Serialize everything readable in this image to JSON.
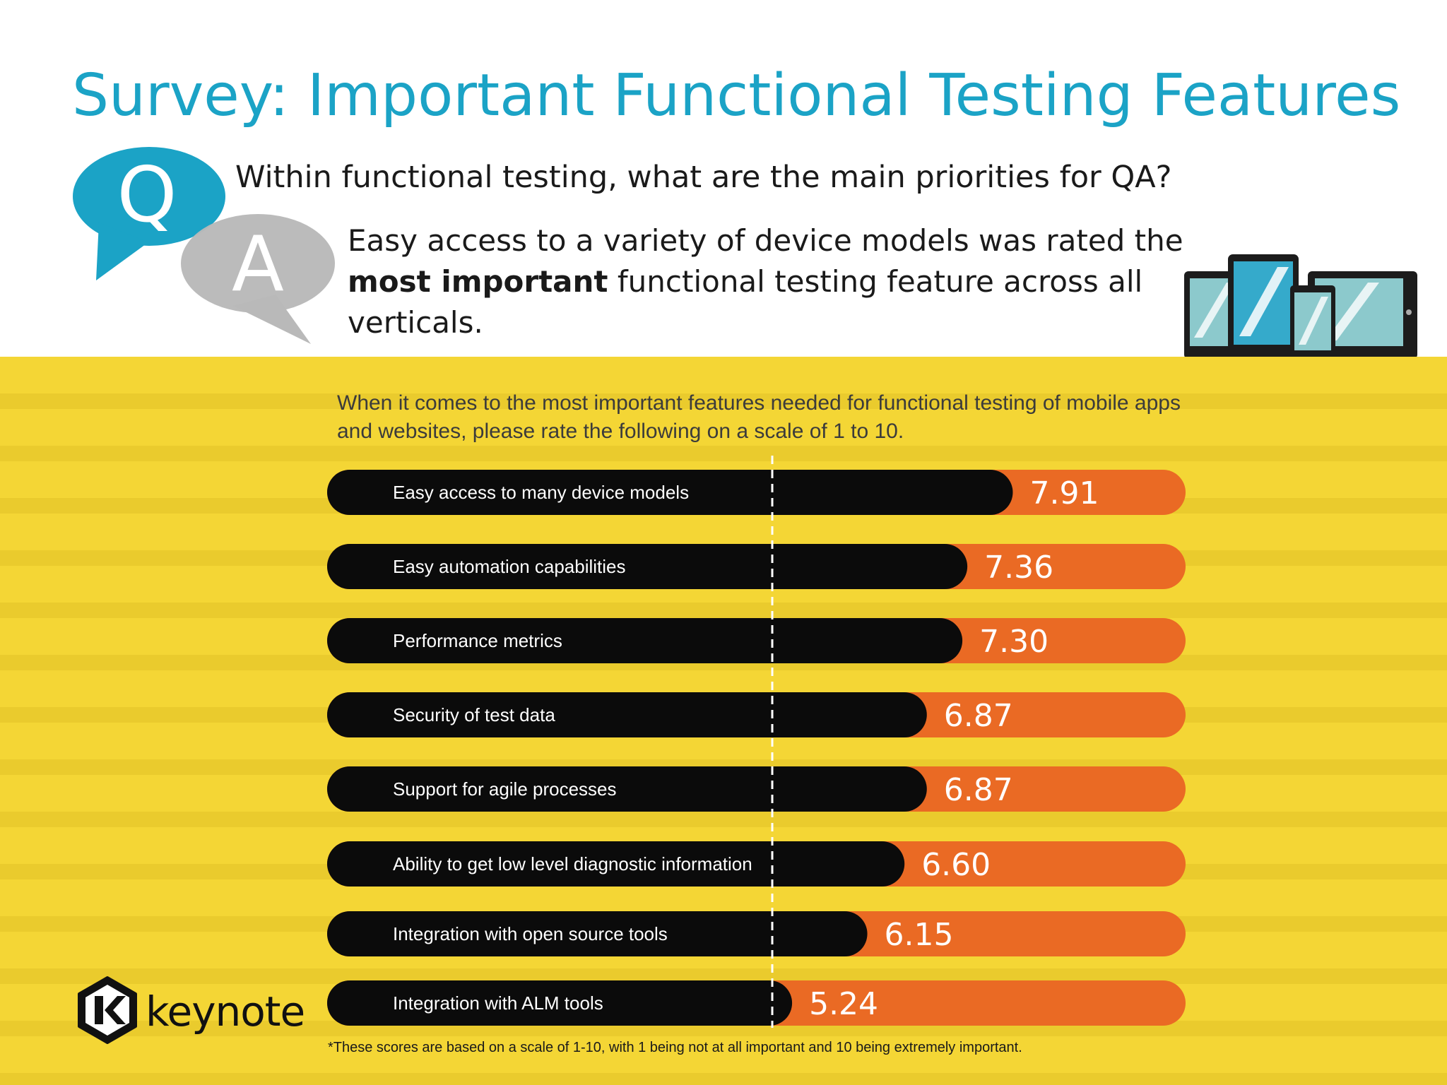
{
  "slide": {
    "title": "Survey: Important Functional Testing Features",
    "q_letter": "Q",
    "a_letter": "A",
    "question": "Within functional testing, what are the main priorities for QA?",
    "answer_pre": "Easy access to a variety of device models was rated the ",
    "answer_bold": "most important",
    "answer_post": " functional testing feature across all verticals.",
    "logo_text": "keynote",
    "colors": {
      "title": "#1ba3c6",
      "q_bubble": "#1ba3c6",
      "a_bubble": "#b9b9b9",
      "background_band": "#f4d635",
      "bar_dark": "#0b0b0b",
      "bar_accent": "#ea6a24"
    }
  },
  "chart_data": {
    "type": "bar",
    "orientation": "horizontal",
    "title": "When it comes to the most important features needed for functional testing of mobile apps and websites, please rate the following on a scale of 1 to 10.",
    "categories": [
      "Easy access to many device models",
      "Easy automation capabilities",
      "Performance metrics",
      "Security of test data",
      "Support for agile processes",
      "Ability to get low level diagnostic information",
      "Integration with open source tools",
      "Integration with ALM tools"
    ],
    "values": [
      7.91,
      7.36,
      7.3,
      6.87,
      6.87,
      6.6,
      6.15,
      5.24
    ],
    "value_labels": [
      "7.91",
      "7.36",
      "7.30",
      "6.87",
      "6.87",
      "6.60",
      "6.15",
      "5.24"
    ],
    "scale": [
      1,
      10
    ],
    "reference_line": 5,
    "footnote": "*These scores are based on a scale of 1-10, with 1 being not at all important and 10 being extremely important."
  }
}
